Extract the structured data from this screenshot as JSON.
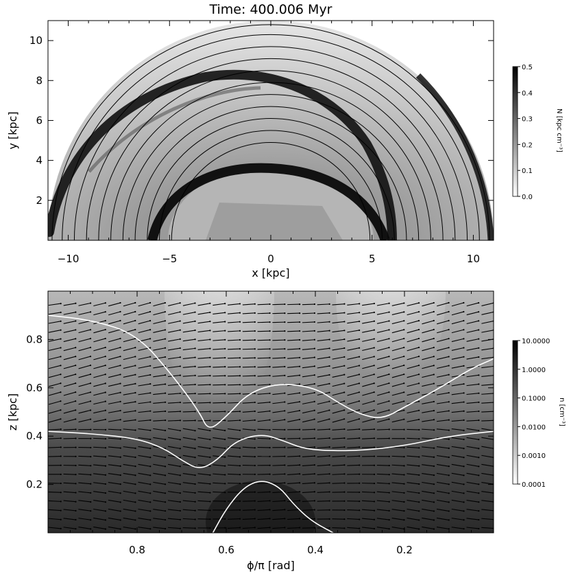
{
  "chart_data": [
    {
      "type": "heatmap",
      "title": "Time: 400.006 Myr",
      "xlabel": "x [kpc]",
      "ylabel": "y [kpc]",
      "xlim": [
        -11,
        11
      ],
      "ylim": [
        0,
        11
      ],
      "xticks": [
        -10,
        -5,
        0,
        5,
        10
      ],
      "xtick_labels": [
        "−10",
        "−5",
        "0",
        "5",
        "10"
      ],
      "yticks": [
        2,
        4,
        6,
        8,
        10
      ],
      "ytick_labels": [
        "2",
        "4",
        "6",
        "8",
        "10"
      ],
      "grayscale": "darker = higher column density",
      "contour_radii": [
        4.9,
        5.5,
        6.1,
        6.7,
        7.3,
        7.9,
        8.5,
        9.1,
        9.7,
        10.3,
        10.8
      ],
      "colorbar": {
        "label": "N [kpc cm⁻³]",
        "range": [
          0,
          0.5
        ],
        "ticks": [
          0.0,
          0.1,
          0.2,
          0.3,
          0.4,
          0.5
        ],
        "tick_labels": [
          "0.0",
          "0.1",
          "0.2",
          "0.3",
          "0.4",
          "0.5"
        ]
      }
    },
    {
      "type": "heatmap",
      "title": "",
      "xlabel": "ϕ/π [rad]",
      "ylabel": "z [kpc]",
      "xlim": [
        1.0,
        0.0
      ],
      "ylim": [
        0.0,
        1.0
      ],
      "xticks": [
        0.8,
        0.6,
        0.4,
        0.2
      ],
      "xtick_labels": [
        "0.8",
        "0.6",
        "0.4",
        "0.2"
      ],
      "yticks": [
        0.2,
        0.4,
        0.6,
        0.8
      ],
      "ytick_labels": [
        "0.2",
        "0.4",
        "0.6",
        "0.8"
      ],
      "grayscale": "darker = higher density, log scale",
      "density_contours": [
        {
          "level": "upper",
          "x": [
            1.0,
            0.9,
            0.8,
            0.72,
            0.66,
            0.64,
            0.6,
            0.55,
            0.48,
            0.4,
            0.35,
            0.3,
            0.25,
            0.2,
            0.12,
            0.05,
            0.0
          ],
          "z": [
            0.9,
            0.88,
            0.82,
            0.65,
            0.5,
            0.42,
            0.48,
            0.58,
            0.62,
            0.6,
            0.54,
            0.49,
            0.47,
            0.52,
            0.6,
            0.68,
            0.72
          ]
        },
        {
          "level": "middle",
          "x": [
            1.0,
            0.9,
            0.8,
            0.74,
            0.7,
            0.66,
            0.62,
            0.58,
            0.52,
            0.47,
            0.43,
            0.38,
            0.3,
            0.2,
            0.1,
            0.0
          ],
          "z": [
            0.42,
            0.41,
            0.39,
            0.35,
            0.3,
            0.26,
            0.3,
            0.38,
            0.41,
            0.38,
            0.35,
            0.34,
            0.34,
            0.36,
            0.4,
            0.42
          ]
        },
        {
          "level": "lower",
          "x": [
            0.63,
            0.6,
            0.56,
            0.52,
            0.48,
            0.45,
            0.41,
            0.36
          ],
          "z": [
            0.0,
            0.1,
            0.19,
            0.22,
            0.19,
            0.12,
            0.05,
            0.0
          ]
        }
      ],
      "colorbar": {
        "label": "n [cm⁻³]",
        "scale": "log",
        "range": [
          0.0001,
          10
        ],
        "ticks": [
          0.0001,
          0.001,
          0.01,
          0.1,
          1,
          10
        ],
        "tick_labels": [
          "0.0001",
          "0.0010",
          "0.0100",
          "0.1000",
          "1.0000",
          "10.0000"
        ]
      }
    }
  ]
}
